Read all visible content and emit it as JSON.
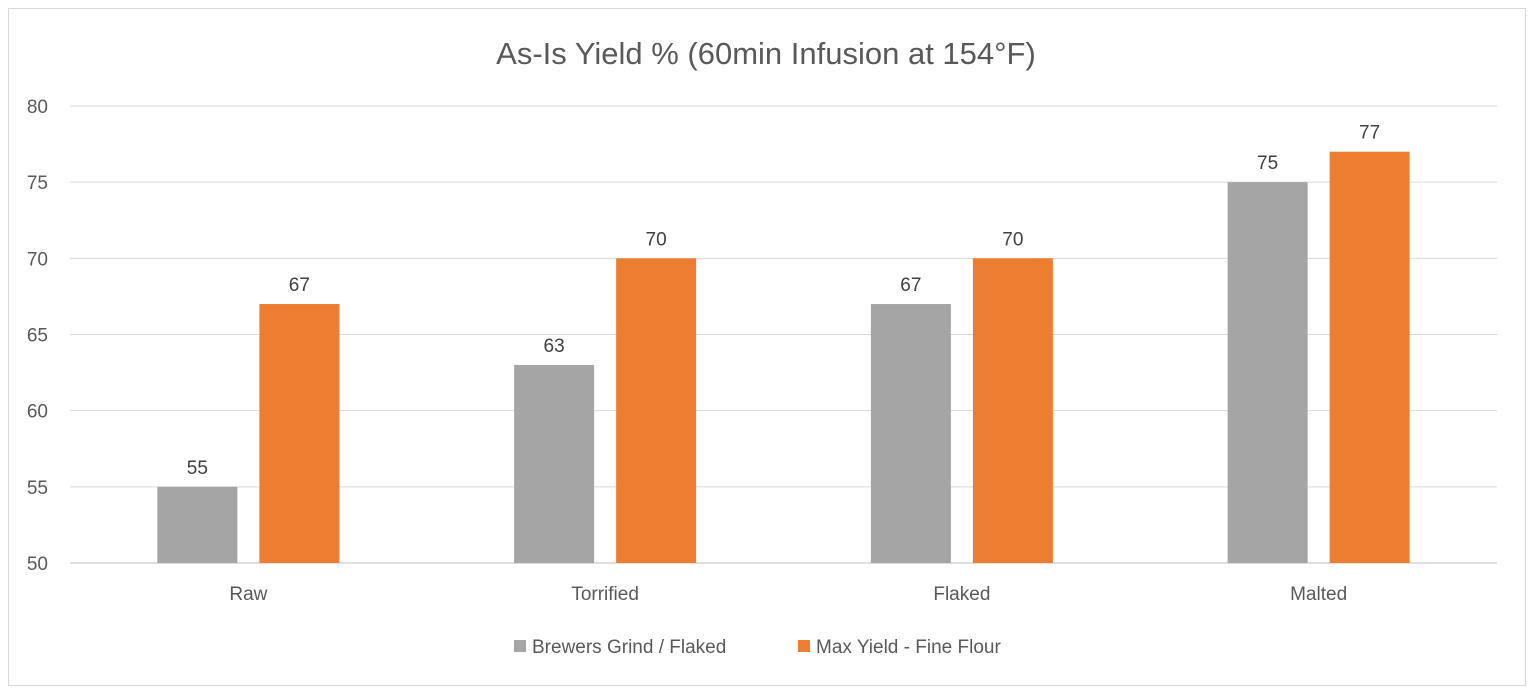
{
  "chart_data": {
    "type": "bar",
    "title": "As-Is Yield % (60min Infusion at 154°F)",
    "xlabel": "",
    "ylabel": "",
    "categories": [
      "Raw",
      "Torrified",
      "Flaked",
      "Malted"
    ],
    "series": [
      {
        "name": "Brewers Grind / Flaked",
        "values": [
          55,
          63,
          67,
          75
        ],
        "color": "#a5a5a5"
      },
      {
        "name": "Max Yield - Fine Flour",
        "values": [
          67,
          70,
          70,
          77
        ],
        "color": "#ed7d31"
      }
    ],
    "ylim": [
      50,
      80
    ],
    "yticks": [
      50,
      55,
      60,
      65,
      70,
      75,
      80
    ],
    "grid": true,
    "data_labels": true,
    "legend": "bottom"
  }
}
